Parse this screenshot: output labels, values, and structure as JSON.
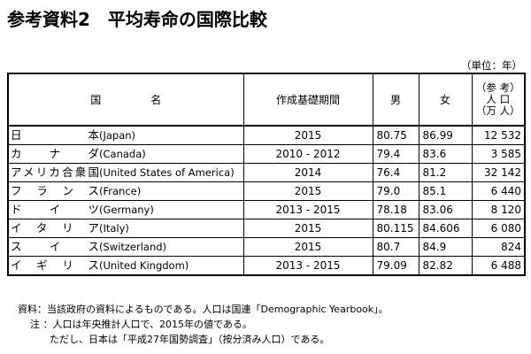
{
  "title": "参考資料2　平均寿命の国際比較",
  "unit": "（単位：年）",
  "headers": {
    "country": "国　名",
    "period": "作成基礎期間",
    "male": "男",
    "female": "女",
    "population_l1": "（参 考）",
    "population_l2": "人 口",
    "population_l3": "（万 人）"
  },
  "rows": [
    {
      "jp": "日本",
      "en": "(Japan)",
      "period": "2015",
      "male": "80.75",
      "female": "86.99",
      "population": "12 532"
    },
    {
      "jp": "カナダ",
      "en": "(Canada)",
      "period": "2010 - 2012",
      "male": "79.4",
      "female": "83.6",
      "population": "3 585"
    },
    {
      "jp": "アメリカ合衆国",
      "en": "(United States of America)",
      "period": "2014",
      "male": "76.4",
      "female": "81.2",
      "population": "32 142"
    },
    {
      "jp": "フランス",
      "en": "(France)",
      "period": "2015",
      "male": "79.0",
      "female": "85.1",
      "population": "6 440"
    },
    {
      "jp": "ドイツ",
      "en": "(Germany)",
      "period": "2013 - 2015",
      "male": "78.18",
      "female": "83.06",
      "population": "8 120"
    },
    {
      "jp": "イタリア",
      "en": "(Italy)",
      "period": "2015",
      "male": "80.115",
      "female": "84.606",
      "population": "6 080"
    },
    {
      "jp": "スイス",
      "en": "(Switzerland)",
      "period": "2015",
      "male": "80.7",
      "female": "84.9",
      "population": "824"
    },
    {
      "jp": "イギリス",
      "en": "(United Kingdom)",
      "period": "2013 - 2015",
      "male": "79.09",
      "female": "82.82",
      "population": "6 488"
    }
  ],
  "notes": {
    "source": "資料：当該政府の資料によるものである。人口は国連「Demographic Yearbook」。",
    "note1": "注 ：人口は年央推計人口で、2015年の値である。",
    "note2": "ただし、日本は「平成27年国勢調査」（按分済み人口）である。"
  }
}
